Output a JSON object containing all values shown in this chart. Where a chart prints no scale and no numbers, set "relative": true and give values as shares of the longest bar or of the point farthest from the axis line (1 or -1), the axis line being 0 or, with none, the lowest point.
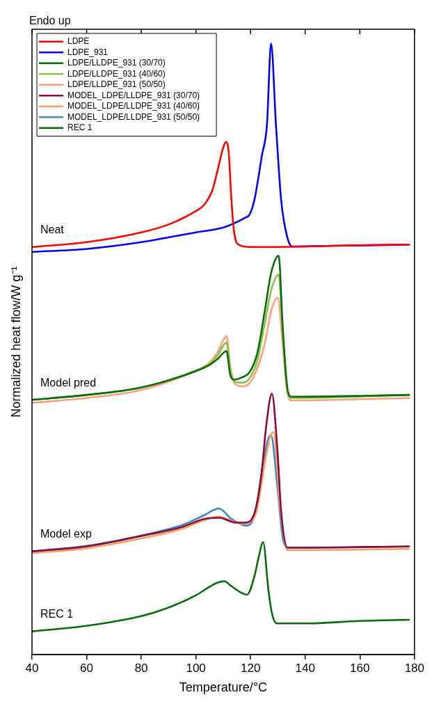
{
  "chart_data": {
    "type": "line",
    "relative": true,
    "xlabel": "Temperature/°C",
    "ylabel": "Normalized heat flow/W g⁻¹",
    "xlim": [
      40,
      180
    ],
    "xticks": [
      40,
      60,
      80,
      100,
      120,
      140,
      160,
      180
    ],
    "grid": false,
    "legend": "top left",
    "marker": "none",
    "line_style": "solid",
    "annotations": [
      "Endo up",
      "Neat",
      "Model pred",
      "Model exp",
      "REC 1"
    ],
    "series": [
      {
        "name": "LDPE",
        "color": "#ff0000",
        "x": [
          40,
          60,
          80,
          90,
          100,
          103,
          106,
          108,
          110,
          111,
          112,
          113,
          114,
          116,
          120,
          140,
          160,
          178
        ],
        "values": [
          0.667,
          0.675,
          0.691,
          0.704,
          0.726,
          0.736,
          0.76,
          0.794,
          0.83,
          0.839,
          0.822,
          0.744,
          0.691,
          0.67,
          0.667,
          0.668,
          0.67,
          0.671
        ]
      },
      {
        "name": "LDPE_931",
        "color": "#0000ff",
        "x": [
          40,
          60,
          80,
          100,
          110,
          115,
          118,
          119.6,
          121.4,
          124.2,
          126,
          127.5,
          129.3,
          131.2,
          133.5,
          135.3,
          150,
          178
        ],
        "values": [
          0.659,
          0.664,
          0.675,
          0.691,
          0.699,
          0.708,
          0.715,
          0.72,
          0.744,
          0.818,
          0.867,
          1.0,
          0.867,
          0.744,
          0.682,
          0.668,
          0.669,
          0.671
        ]
      },
      {
        "name": "LDPE/LLDPE_931 (30/70)",
        "color": "#0a6b0a",
        "x": [
          40,
          60,
          80,
          100,
          105,
          108,
          111.2,
          112.5,
          114,
          117,
          119.6,
          122.4,
          125.2,
          127.5,
          130.3,
          131.7,
          133.5,
          135,
          178
        ],
        "values": [
          0.417,
          0.425,
          0.437,
          0.464,
          0.474,
          0.484,
          0.497,
          0.459,
          0.45,
          0.454,
          0.462,
          0.492,
          0.562,
          0.624,
          0.653,
          0.542,
          0.435,
          0.422,
          0.425
        ]
      },
      {
        "name": "LDPE/LLDPE_931 (40/60)",
        "color": "#8dc04a",
        "x": [
          40,
          60,
          80,
          100,
          105,
          108,
          111.2,
          112.5,
          114,
          117,
          119.6,
          122.4,
          125.2,
          127.5,
          130.3,
          131.7,
          133.5,
          135,
          178
        ],
        "values": [
          0.417,
          0.425,
          0.437,
          0.465,
          0.476,
          0.49,
          0.511,
          0.47,
          0.447,
          0.445,
          0.452,
          0.48,
          0.542,
          0.595,
          0.622,
          0.53,
          0.432,
          0.42,
          0.425
        ]
      },
      {
        "name": "LDPE/LLDPE_931 (50/50)",
        "color": "#f9a07f",
        "x": [
          40,
          60,
          80,
          100,
          105,
          108,
          111.2,
          112.5,
          114,
          117,
          119.6,
          122.4,
          125.2,
          127.5,
          130,
          131.7,
          133.5,
          135,
          178
        ],
        "values": [
          0.412,
          0.42,
          0.433,
          0.465,
          0.478,
          0.495,
          0.521,
          0.475,
          0.445,
          0.439,
          0.444,
          0.468,
          0.509,
          0.562,
          0.584,
          0.51,
          0.428,
          0.416,
          0.42
        ]
      },
      {
        "name": "MODEL_LDPE/LLDPE_931 (30/70)",
        "color": "#8b0a3a",
        "x": [
          40,
          60,
          80,
          95,
          103,
          108.4,
          114.7,
          118,
          121.6,
          124,
          125.8,
          127.8,
          129.8,
          131.2,
          133.5,
          178
        ],
        "values": [
          0.169,
          0.177,
          0.194,
          0.209,
          0.222,
          0.224,
          0.216,
          0.216,
          0.234,
          0.296,
          0.377,
          0.427,
          0.337,
          0.234,
          0.175,
          0.177
        ]
      },
      {
        "name": "MODEL_LDPE/LLDPE_931 (40/60)",
        "color": "#f7a061",
        "x": [
          40,
          60,
          80,
          95,
          103,
          108.4,
          113,
          117,
          121.6,
          125.3,
          127.2,
          128.4,
          130.8,
          133.5,
          178
        ],
        "values": [
          0.166,
          0.174,
          0.19,
          0.206,
          0.22,
          0.226,
          0.219,
          0.214,
          0.226,
          0.316,
          0.357,
          0.364,
          0.242,
          0.171,
          0.173
        ]
      },
      {
        "name": "MODEL_LDPE/LLDPE_931 (50/50)",
        "color": "#3f84c4",
        "x": [
          40,
          60,
          80,
          95,
          103,
          108.4,
          113,
          118.4,
          121.6,
          124.5,
          126.3,
          127.5,
          129.8,
          132,
          134,
          178
        ],
        "values": [
          0.169,
          0.178,
          0.195,
          0.212,
          0.228,
          0.239,
          0.222,
          0.211,
          0.23,
          0.309,
          0.351,
          0.359,
          0.276,
          0.186,
          0.175,
          0.177
        ]
      },
      {
        "name": "REC 1",
        "color": "#0b6b0b",
        "x": [
          40,
          60,
          80,
          90,
          100,
          105,
          108,
          110.4,
          113,
          118.7,
          121.4,
          123,
          124.6,
          126.5,
          127.9,
          129.7,
          140,
          160,
          178
        ],
        "values": [
          0.038,
          0.047,
          0.063,
          0.077,
          0.097,
          0.111,
          0.118,
          0.12,
          0.112,
          0.098,
          0.128,
          0.16,
          0.184,
          0.107,
          0.066,
          0.051,
          0.051,
          0.055,
          0.057
        ]
      }
    ]
  }
}
